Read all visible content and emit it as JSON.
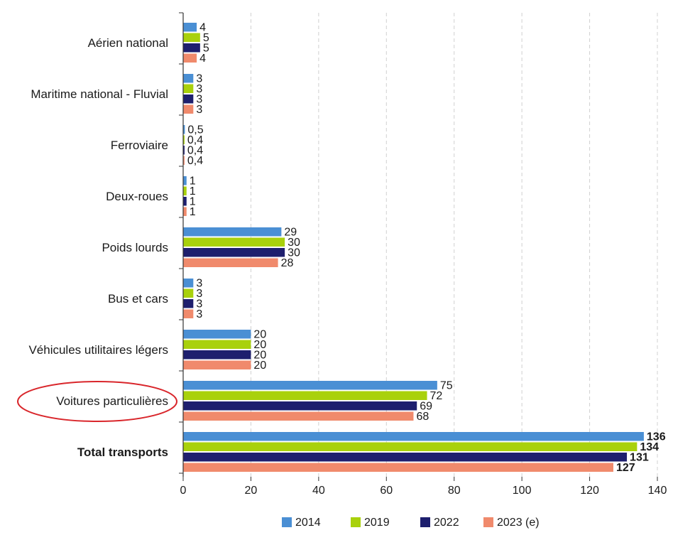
{
  "chart_data": {
    "type": "bar",
    "orientation": "horizontal",
    "categories": [
      "Aérien national",
      "Maritime national - Fluvial",
      "Ferroviaire",
      "Deux-roues",
      "Poids lourds",
      "Bus et cars",
      "Véhicules utilitaires légers",
      "Voitures particulières",
      "Total transports"
    ],
    "bold_categories": [
      "Total transports"
    ],
    "highlighted_category": "Voitures particulières",
    "series": [
      {
        "name": "2014",
        "color": "#4a8fd4",
        "values": [
          4,
          3,
          0.5,
          1,
          29,
          3,
          20,
          75,
          136
        ],
        "labels": [
          "4",
          "3",
          "0,5",
          "1",
          "29",
          "3",
          "20",
          "75",
          "136"
        ]
      },
      {
        "name": "2019",
        "color": "#a9d10c",
        "values": [
          5,
          3,
          0.4,
          1,
          30,
          3,
          20,
          72,
          134
        ],
        "labels": [
          "5",
          "3",
          "0,4",
          "1",
          "30",
          "3",
          "20",
          "72",
          "134"
        ]
      },
      {
        "name": "2022",
        "color": "#1e1f6e",
        "values": [
          5,
          3,
          0.4,
          1,
          30,
          3,
          20,
          69,
          131
        ],
        "labels": [
          "5",
          "3",
          "0,4",
          "1",
          "30",
          "3",
          "20",
          "69",
          "131"
        ]
      },
      {
        "name": "2023 (e)",
        "color": "#f08a6c",
        "values": [
          4,
          3,
          0.4,
          1,
          28,
          3,
          20,
          68,
          127
        ],
        "labels": [
          "4",
          "3",
          "0,4",
          "1",
          "28",
          "3",
          "20",
          "68",
          "127"
        ]
      }
    ],
    "xlim": [
      0,
      140
    ],
    "xticks": [
      0,
      20,
      40,
      60,
      80,
      100,
      120,
      140
    ],
    "grid": true,
    "grid_style": "dashed-vertical",
    "legend_position": "bottom",
    "highlight_color": "#d9262b",
    "title": "",
    "xlabel": "",
    "ylabel": ""
  }
}
